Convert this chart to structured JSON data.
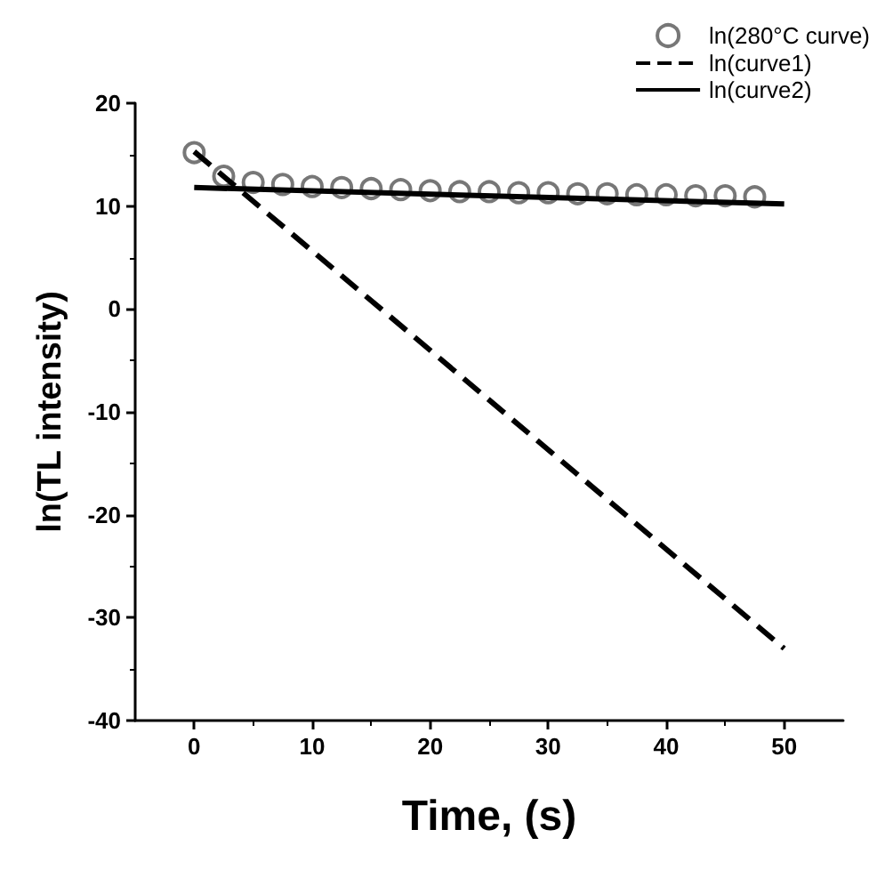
{
  "chart_data": {
    "type": "line",
    "xlabel": "Time, (s)",
    "ylabel": "ln(TL intensity)",
    "xlim": [
      -5,
      55
    ],
    "xticks": [
      0,
      10,
      20,
      30,
      40,
      50
    ],
    "ylim": [
      -40,
      20
    ],
    "yticks": [
      -40,
      -30,
      -20,
      -10,
      0,
      10,
      20
    ],
    "grid": false,
    "legend": "top right",
    "series": [
      {
        "name": "ln(280°C curve)",
        "type": "scatter",
        "marker": "circle",
        "color": "#555555",
        "x": [
          0,
          2.5,
          5,
          7.5,
          10,
          12.5,
          15,
          17.5,
          20,
          22.5,
          25,
          27.5,
          30,
          32.5,
          35,
          37.5,
          40,
          42.5,
          45,
          47.5
        ],
        "values": [
          15.2,
          12.9,
          12.3,
          12.1,
          11.9,
          11.8,
          11.7,
          11.6,
          11.5,
          11.4,
          11.4,
          11.3,
          11.3,
          11.2,
          11.2,
          11.1,
          11.1,
          11.0,
          11.0,
          10.9
        ]
      },
      {
        "name": "ln(curve1)",
        "line_style": "dashed",
        "color": "#000000",
        "x": [
          0,
          50
        ],
        "values": [
          15.3,
          -33
        ]
      },
      {
        "name": "ln(curve2)",
        "line_style": "solid",
        "color": "#000000",
        "x": [
          0,
          50
        ],
        "values": [
          11.8,
          10.2
        ]
      }
    ]
  }
}
